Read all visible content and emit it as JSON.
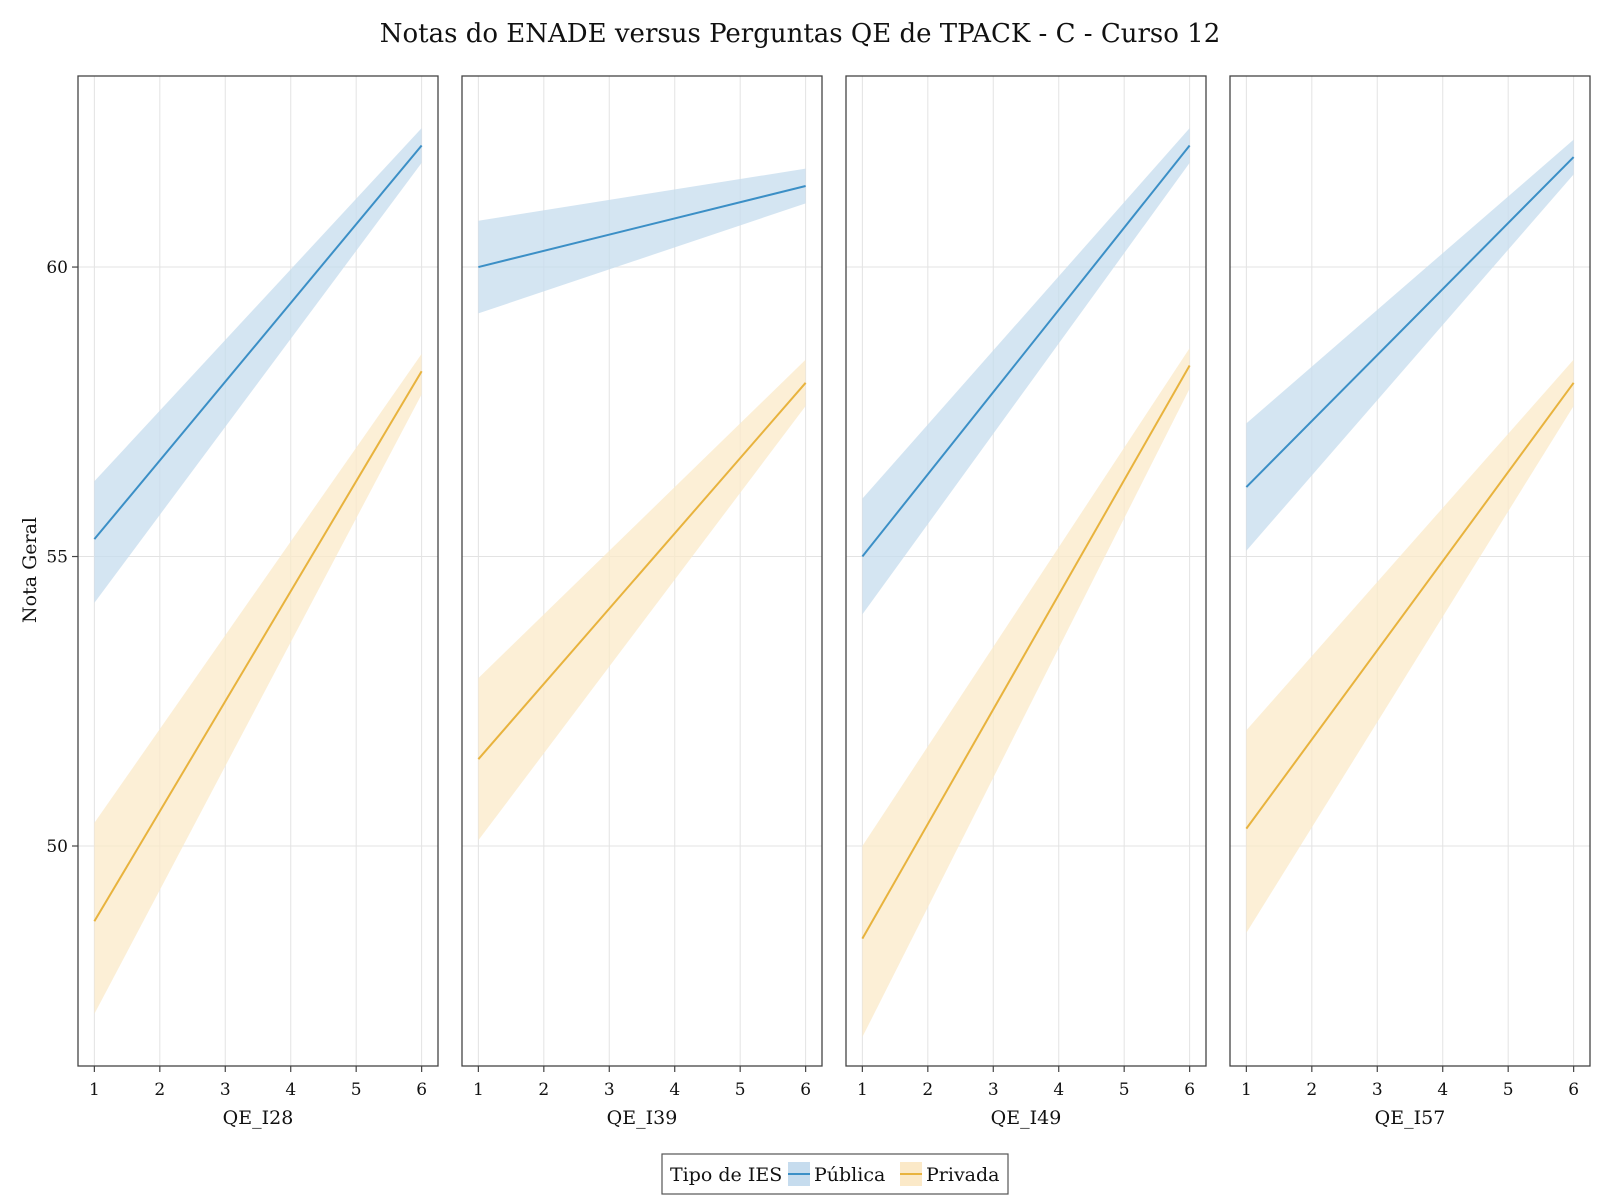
{
  "chart_data": {
    "type": "line",
    "title": "Notas do ENADE versus Perguntas QE de TPACK - C - Curso 12",
    "ylabel": "Nota Geral",
    "ylim": [
      46.2,
      63.3
    ],
    "yticks": [
      50,
      55,
      60
    ],
    "xlim": [
      0.75,
      6.25
    ],
    "xticks": [
      1,
      2,
      3,
      4,
      5,
      6
    ],
    "grid": true,
    "legend": {
      "title": "Tipo de IES",
      "placement": "bottom-center",
      "entries": [
        "Pública",
        "Privada"
      ]
    },
    "colors": {
      "Pública": "#3b8fc6",
      "Pública_band": "#c6dcee",
      "Privada": "#e8b33e",
      "Privada_band": "#fbe9c8"
    },
    "panels": [
      {
        "xlabel": "QE_I28",
        "x": [
          1,
          6
        ],
        "series": [
          {
            "name": "Pública",
            "y": [
              55.3,
              62.1
            ],
            "lower": [
              54.2,
              61.8
            ],
            "upper": [
              56.3,
              62.4
            ]
          },
          {
            "name": "Privada",
            "y": [
              48.7,
              58.2
            ],
            "lower": [
              47.1,
              57.8
            ],
            "upper": [
              50.4,
              58.5
            ]
          }
        ]
      },
      {
        "xlabel": "QE_I39",
        "x": [
          1,
          6
        ],
        "series": [
          {
            "name": "Pública",
            "y": [
              60.0,
              61.4
            ],
            "lower": [
              59.2,
              61.1
            ],
            "upper": [
              60.8,
              61.7
            ]
          },
          {
            "name": "Privada",
            "y": [
              51.5,
              58.0
            ],
            "lower": [
              50.1,
              57.6
            ],
            "upper": [
              52.9,
              58.4
            ]
          }
        ]
      },
      {
        "xlabel": "QE_I49",
        "x": [
          1,
          6
        ],
        "series": [
          {
            "name": "Pública",
            "y": [
              55.0,
              62.1
            ],
            "lower": [
              54.0,
              61.8
            ],
            "upper": [
              56.0,
              62.4
            ]
          },
          {
            "name": "Privada",
            "y": [
              48.4,
              58.3
            ],
            "lower": [
              46.7,
              57.9
            ],
            "upper": [
              50.0,
              58.6
            ]
          }
        ]
      },
      {
        "xlabel": "QE_I57",
        "x": [
          1,
          6
        ],
        "series": [
          {
            "name": "Pública",
            "y": [
              56.2,
              61.9
            ],
            "lower": [
              55.1,
              61.6
            ],
            "upper": [
              57.3,
              62.2
            ]
          },
          {
            "name": "Privada",
            "y": [
              50.3,
              58.0
            ],
            "lower": [
              48.5,
              57.6
            ],
            "upper": [
              52.0,
              58.4
            ]
          }
        ]
      }
    ]
  }
}
